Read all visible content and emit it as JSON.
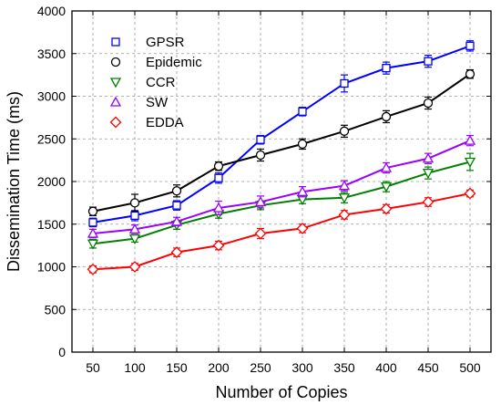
{
  "chart_data": {
    "type": "line",
    "xlabel": "Number of Copies",
    "ylabel": "Dissemination Time (ms)",
    "x": [
      50,
      100,
      150,
      200,
      250,
      300,
      350,
      400,
      450,
      500
    ],
    "xlim": [
      25,
      525
    ],
    "ylim": [
      0,
      4000
    ],
    "yticks": [
      0,
      500,
      1000,
      1500,
      2000,
      2500,
      3000,
      3500,
      4000
    ],
    "grid": true,
    "legend_position": "top-left",
    "series": [
      {
        "name": "GPSR",
        "color": "#0000ff",
        "marker": "square",
        "values": [
          1520,
          1600,
          1720,
          2040,
          2490,
          2820,
          3150,
          3330,
          3410,
          3590
        ],
        "errors": [
          50,
          60,
          55,
          60,
          50,
          50,
          100,
          70,
          70,
          60
        ]
      },
      {
        "name": "Epidemic",
        "color": "#000000",
        "marker": "circle",
        "values": [
          1650,
          1750,
          1890,
          2180,
          2310,
          2440,
          2590,
          2760,
          2920,
          3260
        ],
        "errors": [
          50,
          100,
          70,
          50,
          70,
          60,
          70,
          70,
          70,
          50
        ]
      },
      {
        "name": "CCR",
        "color": "#008000",
        "marker": "triangle-down",
        "values": [
          1270,
          1330,
          1490,
          1620,
          1720,
          1790,
          1810,
          1940,
          2100,
          2230
        ],
        "errors": [
          50,
          40,
          50,
          50,
          50,
          50,
          60,
          60,
          70,
          100
        ]
      },
      {
        "name": "SW",
        "color": "#9900ff",
        "marker": "triangle-up",
        "values": [
          1390,
          1440,
          1530,
          1690,
          1760,
          1880,
          1950,
          2160,
          2270,
          2480
        ],
        "errors": [
          50,
          50,
          50,
          80,
          70,
          60,
          60,
          60,
          60,
          60
        ]
      },
      {
        "name": "EDDA",
        "color": "#ff0000",
        "marker": "diamond",
        "values": [
          970,
          1000,
          1170,
          1250,
          1390,
          1450,
          1610,
          1680,
          1760,
          1860
        ],
        "errors": [
          40,
          40,
          50,
          50,
          60,
          50,
          50,
          50,
          50,
          40
        ]
      }
    ]
  }
}
